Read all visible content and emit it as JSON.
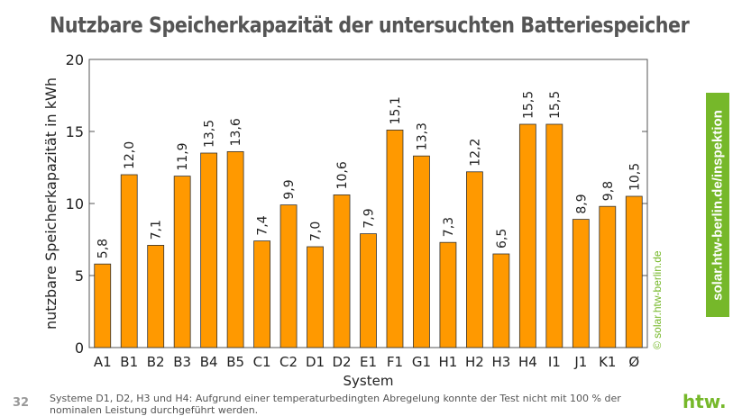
{
  "title": "Nutzbare Speicherkapazität der untersuchten Batteriespeicher",
  "chart_data": {
    "type": "bar",
    "categories": [
      "A1",
      "B1",
      "B2",
      "B3",
      "B4",
      "B5",
      "C1",
      "C2",
      "D1",
      "D2",
      "E1",
      "F1",
      "G1",
      "H1",
      "H2",
      "H3",
      "H4",
      "I1",
      "J1",
      "K1",
      "Ø"
    ],
    "values": [
      5.8,
      12.0,
      7.1,
      11.9,
      13.5,
      13.6,
      7.4,
      9.9,
      7.0,
      10.6,
      7.9,
      15.1,
      13.3,
      7.3,
      12.2,
      6.5,
      15.5,
      15.5,
      8.9,
      9.8,
      10.5
    ],
    "data_labels": [
      "5,8",
      "12,0",
      "7,1",
      "11,9",
      "13,5",
      "13,6",
      "7,4",
      "9,9",
      "7,0",
      "10,6",
      "7,9",
      "15,1",
      "13,3",
      "7,3",
      "12,2",
      "6,5",
      "15,5",
      "15,5",
      "8,9",
      "9,8",
      "10,5"
    ],
    "xlabel": "System",
    "ylabel": "nutzbare Speicherkapazität in kWh",
    "ylim": [
      0,
      20
    ],
    "yticks": [
      "0",
      "5",
      "10",
      "15",
      "20"
    ],
    "grid": false,
    "bar_color": "#ff9900"
  },
  "watermark": "© solar.htw-berlin.de",
  "side_badge": "solar.htw-berlin.de/inspektion",
  "page_number": "32",
  "footnote": "Systeme D1, D2, H3 und H4: Aufgrund einer temperaturbedingten Abregelung konnte der Test nicht mit 100 % der nominalen Leistung durchgeführt werden.",
  "logo": "htw.",
  "accent_color": "#76b82a"
}
